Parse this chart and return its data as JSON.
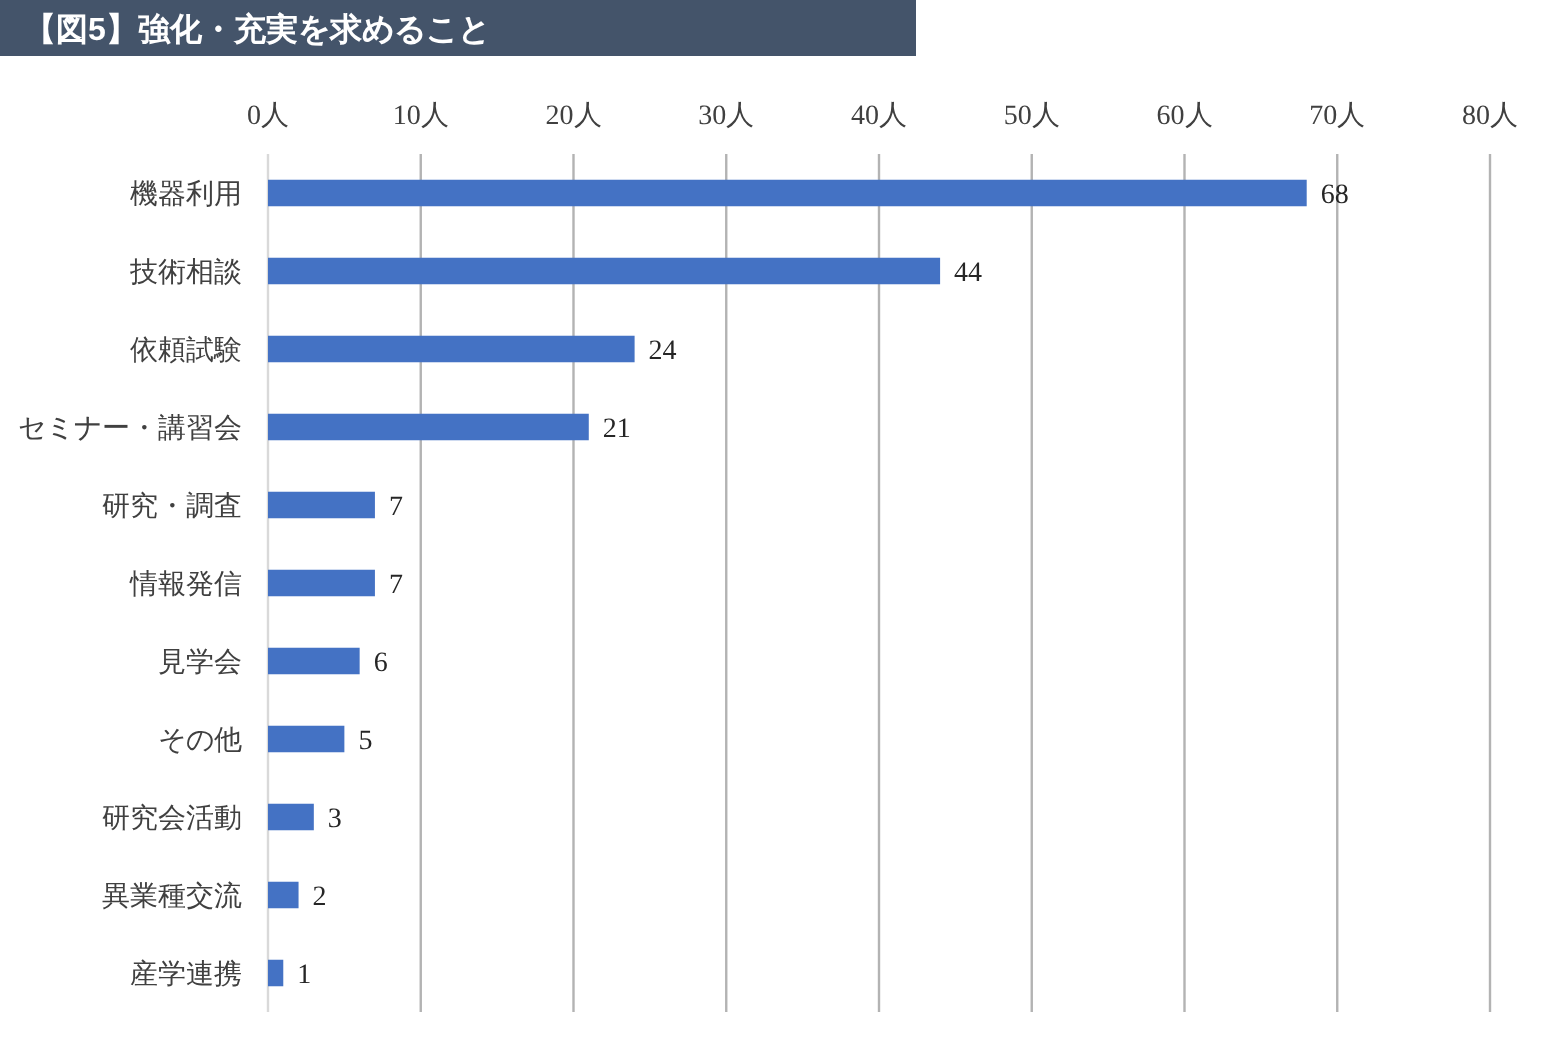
{
  "chart_data": {
    "type": "bar",
    "orientation": "horizontal",
    "title": "【図5】強化・充実を求めること",
    "categories": [
      "機器利用",
      "技術相談",
      "依頼試験",
      "セミナー・講習会",
      "研究・調査",
      "情報発信",
      "見学会",
      "その他",
      "研究会活動",
      "異業種交流",
      "産学連携"
    ],
    "values": [
      68,
      44,
      24,
      21,
      7,
      7,
      6,
      5,
      3,
      2,
      1
    ],
    "color": "#4472c4",
    "xlim": [
      0,
      80
    ],
    "xticks": [
      {
        "value": 0,
        "label": "0人"
      },
      {
        "value": 10,
        "label": "10人"
      },
      {
        "value": 20,
        "label": "20人"
      },
      {
        "value": 30,
        "label": "30人"
      },
      {
        "value": 40,
        "label": "40人"
      },
      {
        "value": 50,
        "label": "50人"
      },
      {
        "value": 60,
        "label": "60人"
      },
      {
        "value": 70,
        "label": "70人"
      },
      {
        "value": 80,
        "label": "80人"
      }
    ],
    "grid": "x",
    "data_labels": true
  }
}
